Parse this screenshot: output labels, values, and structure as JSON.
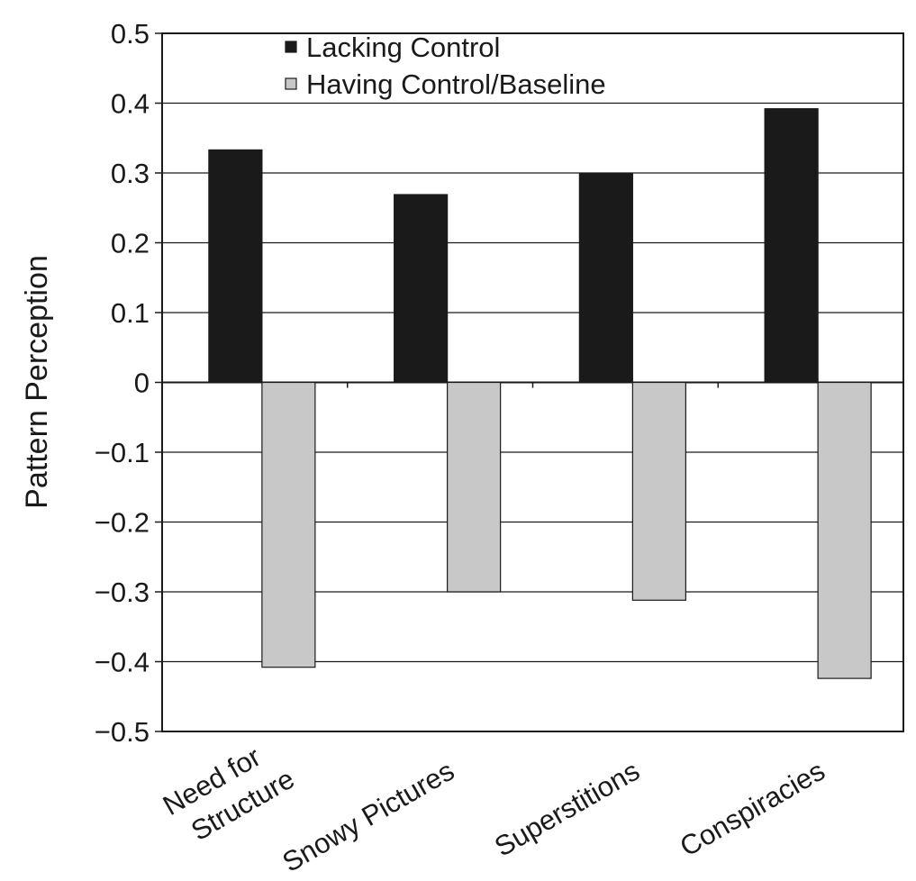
{
  "chart_data": {
    "type": "bar",
    "title": "",
    "xlabel": "",
    "ylabel": "Pattern Perception",
    "ylim": [
      -0.5,
      0.5
    ],
    "yticks": [
      "0.5",
      "0.4",
      "0.3",
      "0.2",
      "0.1",
      "0",
      "−0.1",
      "−0.2",
      "−0.3",
      "−0.4",
      "−0.5"
    ],
    "ytick_values": [
      0.5,
      0.4,
      0.3,
      0.2,
      0.1,
      0,
      -0.1,
      -0.2,
      -0.3,
      -0.4,
      -0.5
    ],
    "grid": true,
    "legend_placement": "top-center",
    "categories": [
      [
        "Need for",
        "Structure"
      ],
      [
        "Snowy Pictures"
      ],
      [
        "Superstitions"
      ],
      [
        "Conspiracies"
      ]
    ],
    "series": [
      {
        "name": "Lacking Control",
        "color": "#1a1a1a",
        "values": [
          0.333,
          0.269,
          0.299,
          0.392
        ]
      },
      {
        "name": "Having Control/Baseline",
        "color": "#c8c8c8",
        "values": [
          -0.408,
          -0.3,
          -0.312,
          -0.424
        ]
      }
    ]
  }
}
